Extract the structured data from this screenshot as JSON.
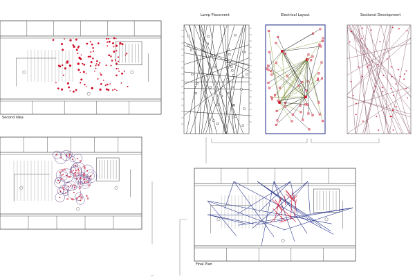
{
  "board": {
    "captions": {
      "second_idea": "Second Idea",
      "lamp_placement": "Lamp Placement",
      "electrical_layout": "Electrical Layout",
      "sectional_development": "Sectional Development",
      "final_plan": "Final Plan"
    }
  },
  "colors": {
    "line": "#333333",
    "wall": "#555555",
    "red": "#d0102a",
    "navy": "#1c2a86",
    "blue": "#3a4fa0",
    "purple": "#6a4a8a",
    "pink": "#e79aa6",
    "green": "#7f9a33",
    "gray": "#9a9a9a"
  }
}
